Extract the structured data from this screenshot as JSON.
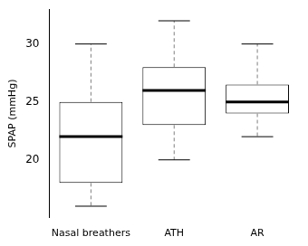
{
  "chart_data": {
    "type": "box",
    "y_label": "SPAP (mmHg)",
    "categories": [
      "Nasal breathers",
      "ATH",
      "AR"
    ],
    "min": [
      16,
      20,
      22
    ],
    "q1": [
      18,
      23,
      24
    ],
    "median": [
      22,
      26,
      25
    ],
    "q3": [
      25,
      28,
      26.5
    ],
    "max": [
      30,
      32,
      30
    ],
    "color": "#000000",
    "ylim": [
      15,
      33
    ],
    "yticks": [
      20,
      25,
      30
    ],
    "grid": false
  }
}
